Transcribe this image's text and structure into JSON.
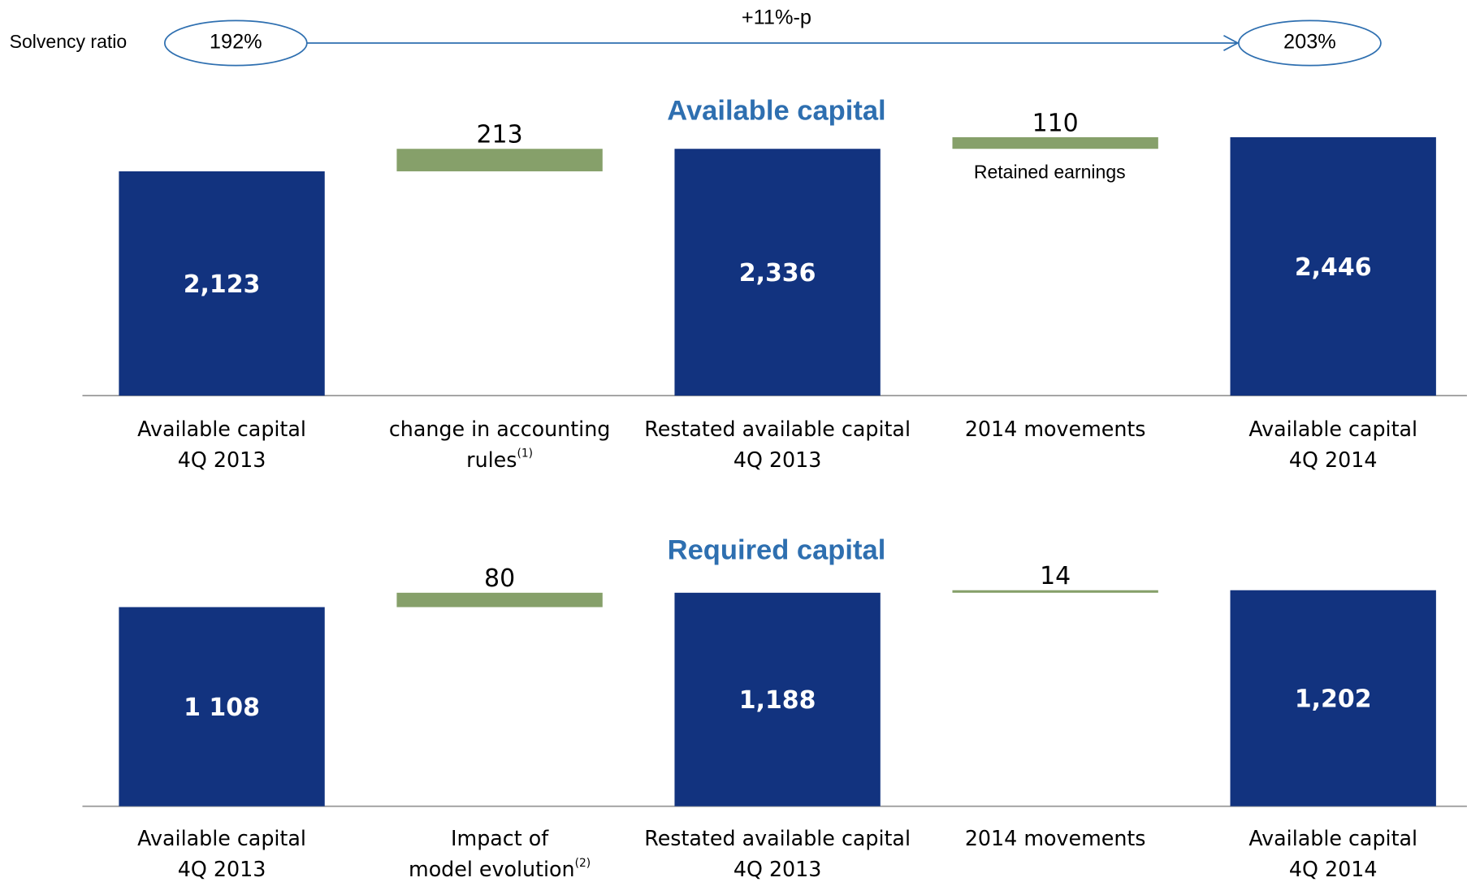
{
  "header": {
    "label": "Solvency ratio",
    "from": "192%",
    "to": "203%",
    "change": "+11%-p"
  },
  "chart_data": [
    {
      "type": "waterfall",
      "title": "Available capital",
      "categories": [
        [
          "Available capital",
          "4Q 2013"
        ],
        [
          "change in accounting",
          "rules"
        ],
        [
          "Restated available capital",
          "4Q 2013"
        ],
        [
          "2014 movements"
        ],
        [
          "Available capital",
          "4Q 2014"
        ]
      ],
      "category_notes": [
        null,
        "(1)",
        null,
        null,
        null
      ],
      "measure": [
        "absolute",
        "relative",
        "absolute",
        "relative",
        "absolute"
      ],
      "values": [
        2123,
        213,
        2336,
        110,
        2446
      ],
      "value_labels": [
        "2,123",
        "213",
        "2,336",
        "110",
        "2,446"
      ],
      "annotations": [
        null,
        null,
        null,
        "Retained earnings",
        null
      ],
      "total_color": "#12337f",
      "delta_color": "#86a06a",
      "ylim": [
        0,
        2700
      ]
    },
    {
      "type": "waterfall",
      "title": "Required capital",
      "categories": [
        [
          "Available capital",
          "4Q 2013"
        ],
        [
          "Impact of",
          "model evolution"
        ],
        [
          "Restated available capital",
          "4Q 2013"
        ],
        [
          "2014 movements"
        ],
        [
          "Available capital",
          "4Q 2014"
        ]
      ],
      "category_notes": [
        null,
        "(2)",
        null,
        null,
        null
      ],
      "measure": [
        "absolute",
        "relative",
        "absolute",
        "relative",
        "absolute"
      ],
      "values": [
        1108,
        80,
        1188,
        14,
        1202
      ],
      "value_labels": [
        "1 108",
        "80",
        "1,188",
        "14",
        "1,202"
      ],
      "annotations": [
        null,
        null,
        null,
        null,
        null
      ],
      "total_color": "#12337f",
      "delta_color": "#86a06a",
      "ylim": [
        0,
        1400
      ]
    }
  ]
}
